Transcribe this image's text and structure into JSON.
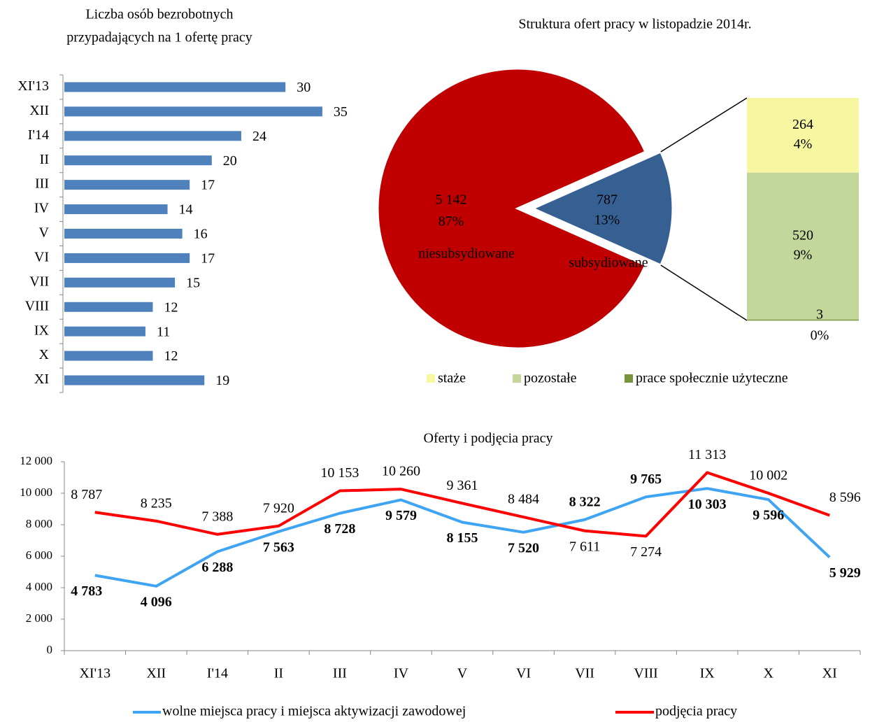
{
  "chart_data": [
    {
      "type": "hbar",
      "title": [
        "Liczba osób bezrobotnych",
        "przypadających na 1 ofertę pracy"
      ],
      "categories": [
        "XI'13",
        "XII",
        "I'14",
        "II",
        "III",
        "IV",
        "V",
        "VI",
        "VII",
        "VIII",
        "IX",
        "X",
        "XI"
      ],
      "values": [
        30,
        35,
        24,
        20,
        17,
        14,
        16,
        17,
        15,
        12,
        11,
        12,
        19
      ],
      "color": "#4f81bd"
    },
    {
      "type": "pie",
      "title": "Struktura ofert pracy w listopadzie 2014r.",
      "categories": [
        "niesubsydiowane",
        "subsydiowane"
      ],
      "values": [
        5142,
        787
      ],
      "value_labels": [
        "5 142",
        "787"
      ],
      "percents": [
        87,
        13
      ],
      "percent_labels": [
        "87%",
        "13%"
      ],
      "colors": [
        "#c00000",
        "#376092"
      ],
      "breakdown": {
        "categories": [
          "staże",
          "pozostałe",
          "prace społecznie użyteczne"
        ],
        "values": [
          264,
          520,
          3
        ],
        "percents": [
          4,
          9,
          0
        ],
        "percent_labels": [
          "4%",
          "9%",
          "0%"
        ],
        "colors": [
          "#f7f7a1",
          "#c4d79b",
          "#77933c"
        ]
      }
    },
    {
      "type": "line",
      "title": "Oferty i podjęcia pracy",
      "categories": [
        "XI'13",
        "XII",
        "I'14",
        "II",
        "III",
        "IV",
        "V",
        "VI",
        "VII",
        "VIII",
        "IX",
        "X",
        "XI"
      ],
      "ylim": [
        0,
        12000
      ],
      "yticks": [
        0,
        {
          "value": 2000,
          "label": "2 000"
        },
        {
          "value": 4000,
          "label": "4 000"
        },
        {
          "value": 6000,
          "label": "6 000"
        },
        {
          "value": 8000,
          "label": "8 000"
        },
        {
          "value": 10000,
          "label": "10 000"
        },
        {
          "value": 12000,
          "label": "12 000"
        }
      ],
      "series": [
        {
          "name": "wolne miejsca pracy i miejsca aktywizacji zawodowej",
          "color": "#3fa4f2",
          "bold_labels": true,
          "values": [
            4783,
            4096,
            6288,
            7563,
            8728,
            9579,
            8155,
            7520,
            8322,
            9765,
            10303,
            9596,
            5929
          ],
          "value_labels": [
            "4 783",
            "4 096",
            "6 288",
            "7 563",
            "8 728",
            "9 579",
            "8 155",
            "7 520",
            "8 322",
            "9 765",
            "10 303",
            "9 596",
            "5 929"
          ]
        },
        {
          "name": "podjęcia pracy",
          "color": "#ff0000",
          "bold_labels": false,
          "values": [
            8787,
            8235,
            7388,
            7920,
            10153,
            10260,
            9361,
            8484,
            7611,
            7274,
            11313,
            10002,
            8596
          ],
          "value_labels": [
            "8 787",
            "8 235",
            "7 388",
            "7 920",
            "10 153",
            "10 260",
            "9 361",
            "8 484",
            "7 611",
            "7 274",
            "11 313",
            "10 002",
            "8 596"
          ]
        }
      ]
    }
  ]
}
